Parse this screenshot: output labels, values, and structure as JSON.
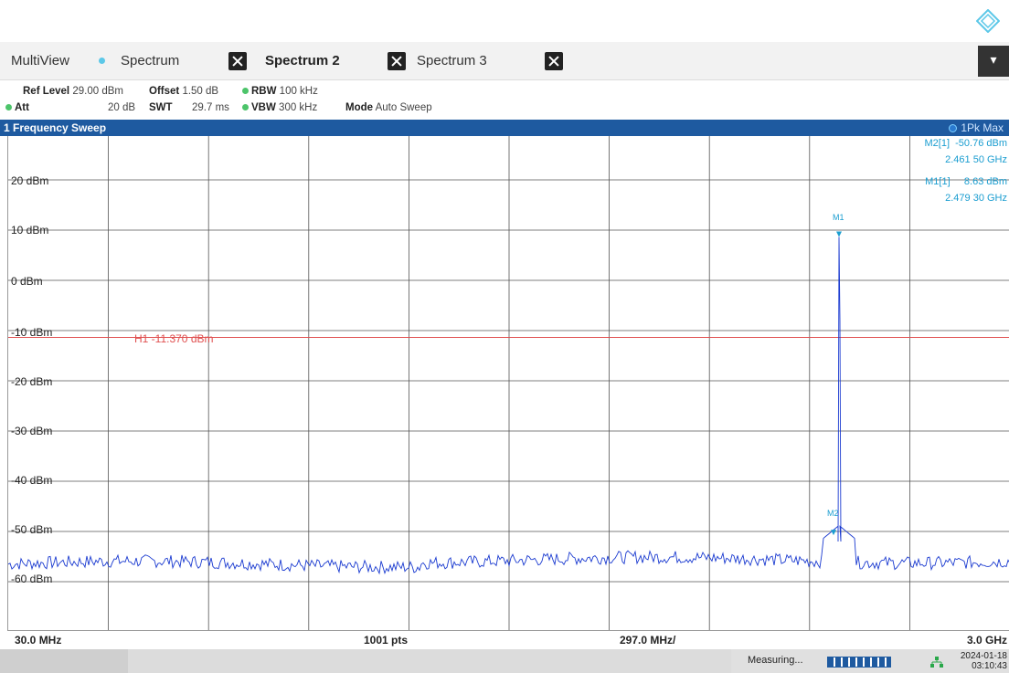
{
  "tabs": {
    "multiview": "MultiView",
    "spectrum": "Spectrum",
    "spectrum2": "Spectrum 2",
    "spectrum3": "Spectrum 3"
  },
  "settings": {
    "ref_level_label": "Ref Level",
    "ref_level_value": "29.00 dBm",
    "offset_label": "Offset",
    "offset_value": "1.50 dB",
    "rbw_label": "RBW",
    "rbw_value": "100 kHz",
    "att_label": "Att",
    "att_value": "20 dB",
    "swt_label": "SWT",
    "swt_value": "29.7 ms",
    "vbw_label": "VBW",
    "vbw_value": "300 kHz",
    "mode_label": "Mode",
    "mode_value": "Auto Sweep"
  },
  "window": {
    "title": "1 Frequency Sweep",
    "trace": "1Pk Max"
  },
  "y_labels": [
    "20 dBm",
    "10 dBm",
    "0 dBm",
    "-10 dBm",
    "-20 dBm",
    "-30 dBm",
    "-40 dBm",
    "-50 dBm",
    "-60 dBm"
  ],
  "markers": {
    "m2_label": "M2[1]",
    "m2_level": "-50.76 dBm",
    "m2_freq": "2.461 50 GHz",
    "m1_label": "M1[1]",
    "m1_level": "8.63 dBm",
    "m1_freq": "2.479 30 GHz",
    "m1_tag": "M1",
    "m2_tag": "M2"
  },
  "hline": "H1 -11.370 dBm",
  "axis": {
    "start": "30.0 MHz",
    "points": "1001 pts",
    "span_div": "297.0 MHz/",
    "stop": "3.0 GHz"
  },
  "status": {
    "measuring": "Measuring...",
    "date": "2024-01-18",
    "time": "03:10:43"
  },
  "colors": {
    "trace": "#1a3ad0",
    "hline": "#e05050",
    "marker": "#1a9dd0",
    "header": "#1e5aa0"
  }
}
